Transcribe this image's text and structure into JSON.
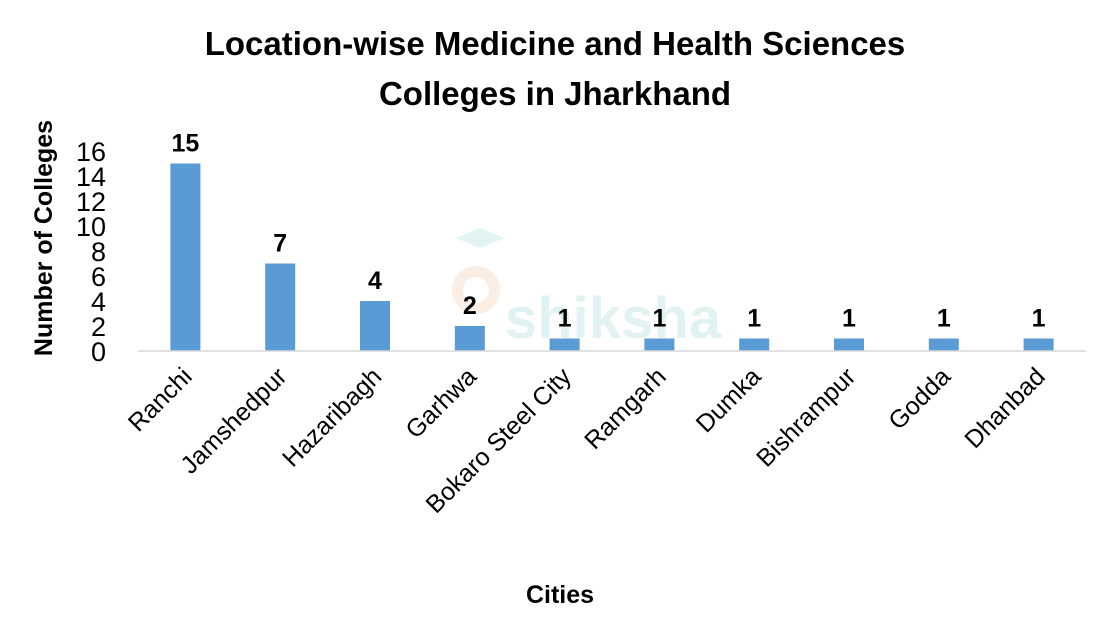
{
  "chart_data": {
    "type": "bar",
    "title_lines": [
      "Location-wise Medicine and Health Sciences",
      "Colleges in Jharkhand"
    ],
    "xlabel": "Cities",
    "ylabel": "Number of Colleges",
    "categories": [
      "Ranchi",
      "Jamshedpur",
      "Hazaribagh",
      "Garhwa",
      "Bokaro Steel City",
      "Ramgarh",
      "Dumka",
      "Bishrampur",
      "Godda",
      "Dhanbad"
    ],
    "values": [
      15,
      7,
      4,
      2,
      1,
      1,
      1,
      1,
      1,
      1
    ],
    "ylim": [
      0,
      16
    ],
    "yticks": [
      "0",
      "2",
      "4",
      "6",
      "8",
      "10",
      "12",
      "14",
      "16"
    ],
    "grid": false,
    "data_labels": true,
    "bar_color": "#5B9BD5",
    "axis_color": "#D9D9D9",
    "watermark": "shiksha"
  }
}
